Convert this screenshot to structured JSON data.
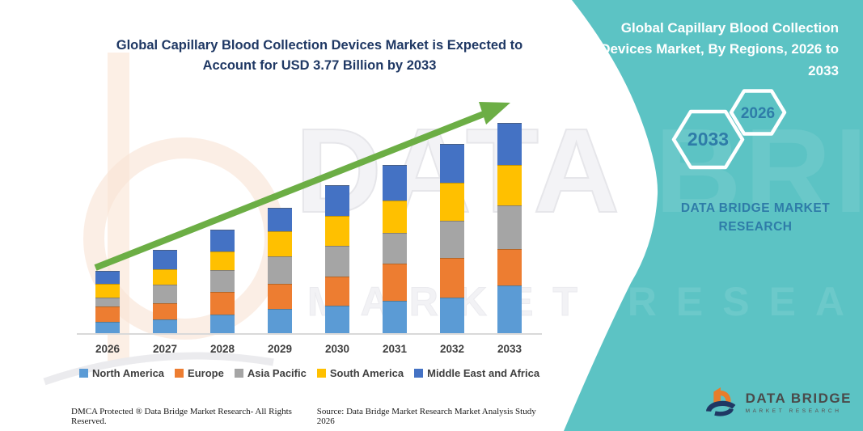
{
  "header": {
    "title": "Global Capillary Blood Collection Devices Market is Expected to Account for USD 3.77 Billion by 2033"
  },
  "side_panel": {
    "background_color": "#5CC3C4",
    "heading": "Global Capillary Blood Collection Devices Market, By Regions, 2026 to 2033",
    "hexagons": [
      {
        "label": "2033"
      },
      {
        "label": "2026"
      }
    ],
    "brand_text": "DATA BRIDGE MARKET RESEARCH",
    "accent_text_color": "#2E7CA8"
  },
  "logo": {
    "title": "DATA BRIDGE",
    "subtitle": "MARKET RESEARCH",
    "colors": {
      "orange": "#E87D2B",
      "navy": "#1F3864"
    }
  },
  "footer": {
    "left": "DMCA Protected ® Data Bridge Market Research-  All Rights Reserved.",
    "right": "Source: Data Bridge Market Research  Market Analysis Study 2026"
  },
  "watermarks": {
    "text_primary": "DATA BRIDGE",
    "text_secondary": "MARKET RESEARCH"
  },
  "chart_data": {
    "type": "bar",
    "stacked": true,
    "title": "Global Capillary Blood Collection Devices Market is Expected to Account for USD 3.77 Billion by 2033",
    "units": "USD Billion (values estimated from bar heights; 2033 total labeled 3.77)",
    "categories": [
      "2026",
      "2027",
      "2028",
      "2029",
      "2030",
      "2031",
      "2032",
      "2033"
    ],
    "series": [
      {
        "name": "North America",
        "color": "#5B9BD5",
        "values": [
          0.22,
          0.26,
          0.35,
          0.45,
          0.51,
          0.59,
          0.65,
          0.87
        ]
      },
      {
        "name": "Europe",
        "color": "#ED7D31",
        "values": [
          0.27,
          0.29,
          0.4,
          0.45,
          0.52,
          0.66,
          0.71,
          0.65
        ]
      },
      {
        "name": "Asia Pacific",
        "color": "#A5A5A5",
        "values": [
          0.16,
          0.33,
          0.39,
          0.48,
          0.55,
          0.55,
          0.66,
          0.78
        ]
      },
      {
        "name": "South America",
        "color": "#FFC000",
        "values": [
          0.25,
          0.27,
          0.33,
          0.45,
          0.53,
          0.58,
          0.68,
          0.72
        ]
      },
      {
        "name": "Middle East and Africa",
        "color": "#4472C4",
        "values": [
          0.23,
          0.35,
          0.39,
          0.42,
          0.55,
          0.64,
          0.69,
          0.75
        ]
      }
    ],
    "totals": [
      1.13,
      1.5,
      1.86,
      2.25,
      2.66,
      3.02,
      3.39,
      3.77
    ],
    "ylim": [
      0,
      4
    ],
    "axes_visible": {
      "x": true,
      "y": false
    },
    "grid": false,
    "legend_position": "bottom",
    "trend_arrow": {
      "present": true,
      "color": "#6CAE45",
      "direction": "up-right"
    }
  }
}
